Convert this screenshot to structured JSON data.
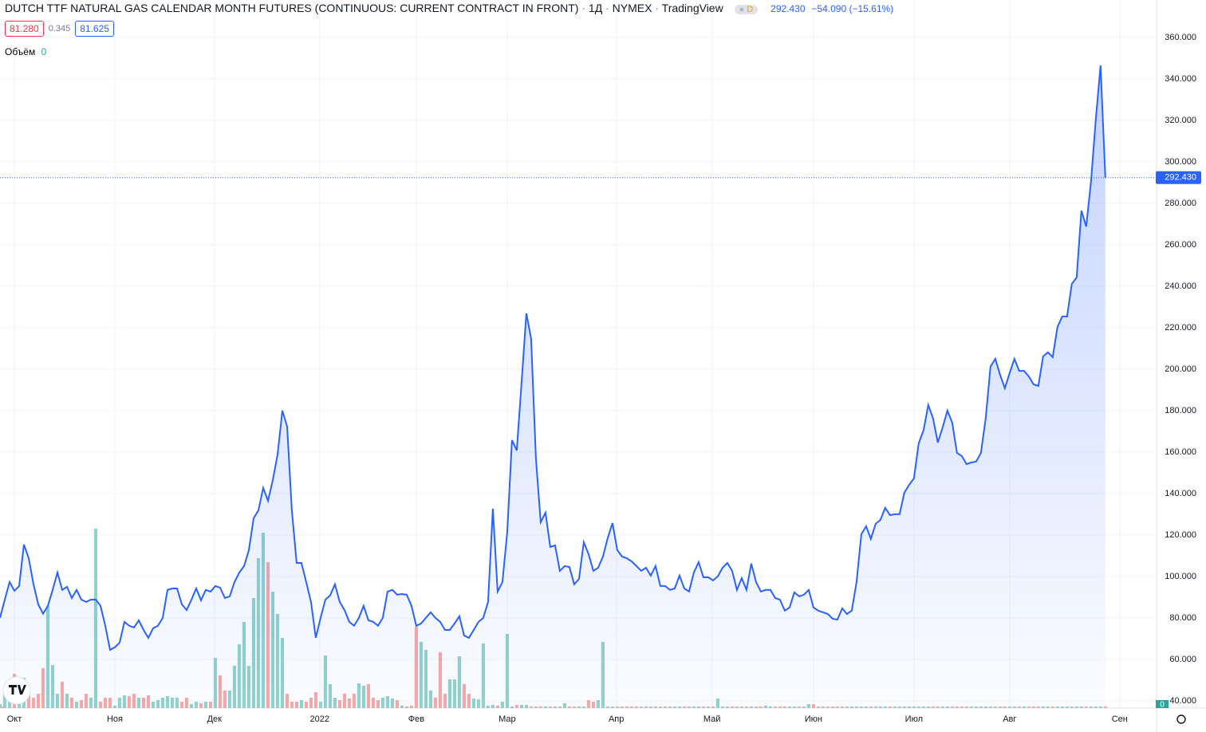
{
  "header": {
    "title": "DUTCH TTF NATURAL GAS CALENDAR MONTH FUTURES (CONTINUOUS: CURRENT CONTRACT IN FRONT)",
    "interval": "1Д",
    "exchange": "NYMEX",
    "source": "TradingView",
    "badge": "D",
    "last": "292.430",
    "change": "−54.090 (−15.61%)",
    "bid": "81.280",
    "spread": "0.345",
    "ask": "81.625"
  },
  "chart_data": {
    "type": "line",
    "color": "#2962ff",
    "grid": true,
    "xlim": [
      0,
      241.7
    ],
    "xticks": [
      {
        "value": 3,
        "label": "Окт"
      },
      {
        "value": 24,
        "label": "Ноя"
      },
      {
        "value": 44.8,
        "label": "Дек"
      },
      {
        "value": 66.8,
        "label": "2022"
      },
      {
        "value": 87,
        "label": "Фев"
      },
      {
        "value": 106,
        "label": "Мар"
      },
      {
        "value": 128.8,
        "label": "Апр"
      },
      {
        "value": 148.8,
        "label": "Май"
      },
      {
        "value": 170,
        "label": "Июн"
      },
      {
        "value": 191,
        "label": "Июл"
      },
      {
        "value": 211,
        "label": "Авг"
      },
      {
        "value": 234,
        "label": "Сен"
      }
    ],
    "ylim": [
      36.5,
      378.1
    ],
    "yticks": [
      {
        "value": 40,
        "label": "40.000"
      },
      {
        "value": 60,
        "label": "60.000"
      },
      {
        "value": 80,
        "label": "80.000"
      },
      {
        "value": 100,
        "label": "100.000"
      },
      {
        "value": 120,
        "label": "120.000"
      },
      {
        "value": 140,
        "label": "140.000"
      },
      {
        "value": 160,
        "label": "160.000"
      },
      {
        "value": 180,
        "label": "180.000"
      },
      {
        "value": 200,
        "label": "200.000"
      },
      {
        "value": 220,
        "label": "220.000"
      },
      {
        "value": 240,
        "label": "240.000"
      },
      {
        "value": 260,
        "label": "260.000"
      },
      {
        "value": 280,
        "label": "280.000"
      },
      {
        "value": 300,
        "label": "300.000"
      },
      {
        "value": 320,
        "label": "320.000"
      },
      {
        "value": 340,
        "label": "340.000"
      },
      {
        "value": 360,
        "label": "360.000"
      }
    ],
    "last_price": {
      "value": 292.43,
      "label": "292.430"
    },
    "x": [
      0,
      1,
      2,
      3,
      4,
      5,
      6,
      7,
      8,
      9,
      10,
      11,
      12,
      13,
      14,
      15,
      16,
      17,
      18,
      19,
      20,
      21,
      22,
      23,
      24,
      25,
      26,
      27,
      28,
      29,
      30,
      31,
      32,
      33,
      34,
      35,
      36,
      37,
      38,
      39,
      40,
      41,
      42,
      43,
      44,
      45,
      46,
      47,
      48,
      49,
      50,
      51,
      52,
      53,
      54,
      55,
      56,
      57,
      58,
      59,
      60,
      61,
      62,
      63,
      64,
      65,
      66,
      67,
      68,
      69,
      70,
      71,
      72,
      73,
      74,
      75,
      76,
      77,
      78,
      79,
      80,
      81,
      82,
      83,
      84,
      85,
      86,
      87,
      88,
      89,
      90,
      91,
      92,
      93,
      94,
      95,
      96,
      97,
      98,
      99,
      100,
      101,
      102,
      103,
      104,
      105,
      106,
      107,
      108,
      109,
      110,
      111,
      112,
      113,
      114,
      115,
      116,
      117,
      118,
      119,
      120,
      121,
      122,
      123,
      124,
      125,
      126,
      127,
      128,
      129,
      130,
      131,
      132,
      133,
      134,
      135,
      136,
      137,
      138,
      139,
      140,
      141,
      142,
      143,
      144,
      145,
      146,
      147,
      148,
      149,
      150,
      151,
      152,
      153,
      154,
      155,
      156,
      157,
      158,
      159,
      160,
      161,
      162,
      163,
      164,
      165,
      166,
      167,
      168,
      169,
      170,
      171,
      172,
      173,
      174,
      175,
      176,
      177,
      178,
      179,
      180,
      181,
      182,
      183,
      184,
      185,
      186,
      187,
      188,
      189,
      190,
      191,
      192,
      193,
      194,
      195,
      196,
      197,
      198,
      199,
      200,
      201,
      202,
      203,
      204,
      205,
      206,
      207,
      208,
      209,
      210,
      211,
      212,
      213,
      214,
      215,
      216,
      217,
      218,
      219,
      220,
      221,
      222,
      223,
      224,
      225,
      226,
      227,
      228,
      229,
      230,
      231
    ],
    "values": [
      80,
      88.8,
      97.3,
      93.1,
      95.4,
      115.4,
      108.8,
      96.2,
      86.5,
      82,
      85.8,
      93.5,
      101.9,
      93.5,
      95,
      89.6,
      93.5,
      88.8,
      87.7,
      88.8,
      88.8,
      85.8,
      76.2,
      64.6,
      65.8,
      68.1,
      78.1,
      76.2,
      75.4,
      78.8,
      74.2,
      70.4,
      75,
      76.2,
      80,
      93.5,
      94.2,
      94.2,
      86.5,
      83.8,
      88.8,
      94.2,
      88.5,
      93.5,
      92.7,
      95.4,
      94.6,
      89.6,
      90.4,
      97.3,
      101.9,
      105,
      112.7,
      128.1,
      131.9,
      142.7,
      136.5,
      146.5,
      158.8,
      180,
      172.3,
      131.9,
      106.5,
      106.5,
      97.3,
      87.7,
      70.4,
      80,
      88.8,
      90.8,
      96.2,
      87.7,
      83.8,
      78.1,
      76.2,
      80,
      85.8,
      78.8,
      78.1,
      76.2,
      80,
      92.7,
      93.5,
      91.2,
      91.5,
      91.2,
      85.8,
      76.2,
      77.3,
      80,
      82.7,
      80,
      78.1,
      74.2,
      74.2,
      77.3,
      80.8,
      71.5,
      70.4,
      74.2,
      78.1,
      80,
      87.7,
      132.7,
      92.7,
      97.3,
      121.2,
      165.8,
      160.8,
      193.5,
      226.9,
      214.6,
      156.9,
      126.2,
      130.8,
      114.2,
      115,
      102.7,
      105,
      104.6,
      96.2,
      98.8,
      116.5,
      110.8,
      102.7,
      104.2,
      109.6,
      118.5,
      125.8,
      112.7,
      109.6,
      108.8,
      107.3,
      105,
      102.7,
      104.2,
      100.4,
      105,
      95.4,
      95.4,
      93.5,
      94.2,
      100.4,
      94.2,
      92.7,
      101.9,
      106.9,
      99.6,
      99.6,
      98.1,
      100,
      104.2,
      106.5,
      102.7,
      93.5,
      99.2,
      93.5,
      106.2,
      97.3,
      92.7,
      93.5,
      93.5,
      89.6,
      88.8,
      83.5,
      85,
      92.3,
      90.4,
      91.2,
      93.5,
      85,
      83.5,
      82.7,
      81.9,
      79.6,
      79.2,
      84.6,
      81.9,
      83.5,
      97.3,
      120.4,
      124.2,
      118.1,
      125.4,
      127.3,
      133.1,
      129.6,
      130,
      130,
      140.4,
      144.2,
      147.3,
      164.2,
      170.4,
      182.7,
      176.2,
      164.6,
      171.9,
      180,
      174.2,
      159.6,
      158.1,
      154.2,
      155,
      155.4,
      159.6,
      176.2,
      201.2,
      205,
      197.3,
      190.8,
      198.1,
      205,
      199.2,
      199.2,
      196.5,
      192.7,
      191.9,
      206.2,
      208.1,
      205.8,
      220.4,
      225.4,
      225.4,
      241.2,
      244.2,
      276.5,
      268.8,
      290.4,
      320.4,
      346.5,
      292.43
    ],
    "volume": {
      "name": "Объём",
      "last": 0,
      "up_color": "#92d2cc",
      "down_color": "#f7a9a7",
      "values": [
        5,
        20,
        33,
        43,
        30,
        38,
        18,
        13,
        18,
        50,
        128,
        54,
        18,
        33,
        18,
        13,
        8,
        10,
        18,
        13,
        225,
        8,
        13,
        13,
        3,
        13,
        16,
        15,
        18,
        13,
        13,
        16,
        8,
        10,
        13,
        15,
        13,
        13,
        8,
        13,
        5,
        8,
        6,
        8,
        8,
        63,
        41,
        22,
        22,
        53,
        80,
        108,
        53,
        138,
        188,
        220,
        183,
        146,
        118,
        88,
        18,
        8,
        8,
        10,
        8,
        13,
        20,
        8,
        66,
        30,
        13,
        10,
        18,
        12,
        18,
        31,
        28,
        30,
        13,
        10,
        13,
        15,
        12,
        10,
        3,
        2,
        3,
        102,
        83,
        73,
        22,
        13,
        70,
        18,
        36,
        36,
        65,
        30,
        18,
        12,
        11,
        81,
        3,
        4,
        3,
        8,
        93,
        2,
        4,
        4,
        4,
        2,
        2,
        2,
        2,
        2,
        2,
        2,
        6,
        2,
        2,
        2,
        2,
        10,
        8,
        10,
        83,
        2,
        2,
        2,
        2,
        2,
        2,
        2,
        2,
        2,
        2,
        2,
        2,
        2,
        2,
        2,
        2,
        2,
        2,
        2,
        2,
        2,
        2,
        2,
        12,
        2,
        2,
        2,
        2,
        2,
        2,
        2,
        2,
        2,
        3,
        2,
        2,
        2,
        2,
        2,
        2,
        2,
        2,
        5,
        5,
        2,
        2,
        2,
        2,
        2,
        2,
        2,
        2,
        2,
        2,
        2,
        2,
        2,
        2,
        2,
        2,
        2,
        2,
        2,
        2,
        2,
        2,
        2,
        2,
        2,
        2,
        2,
        2,
        2,
        2,
        2,
        2,
        2,
        2,
        2,
        2,
        2,
        2,
        2,
        2,
        2,
        2,
        2,
        2,
        2,
        2,
        2,
        2,
        2,
        2,
        2,
        2,
        2,
        2,
        2,
        2,
        2,
        2,
        2,
        2,
        2,
        2,
        2
      ]
    }
  }
}
